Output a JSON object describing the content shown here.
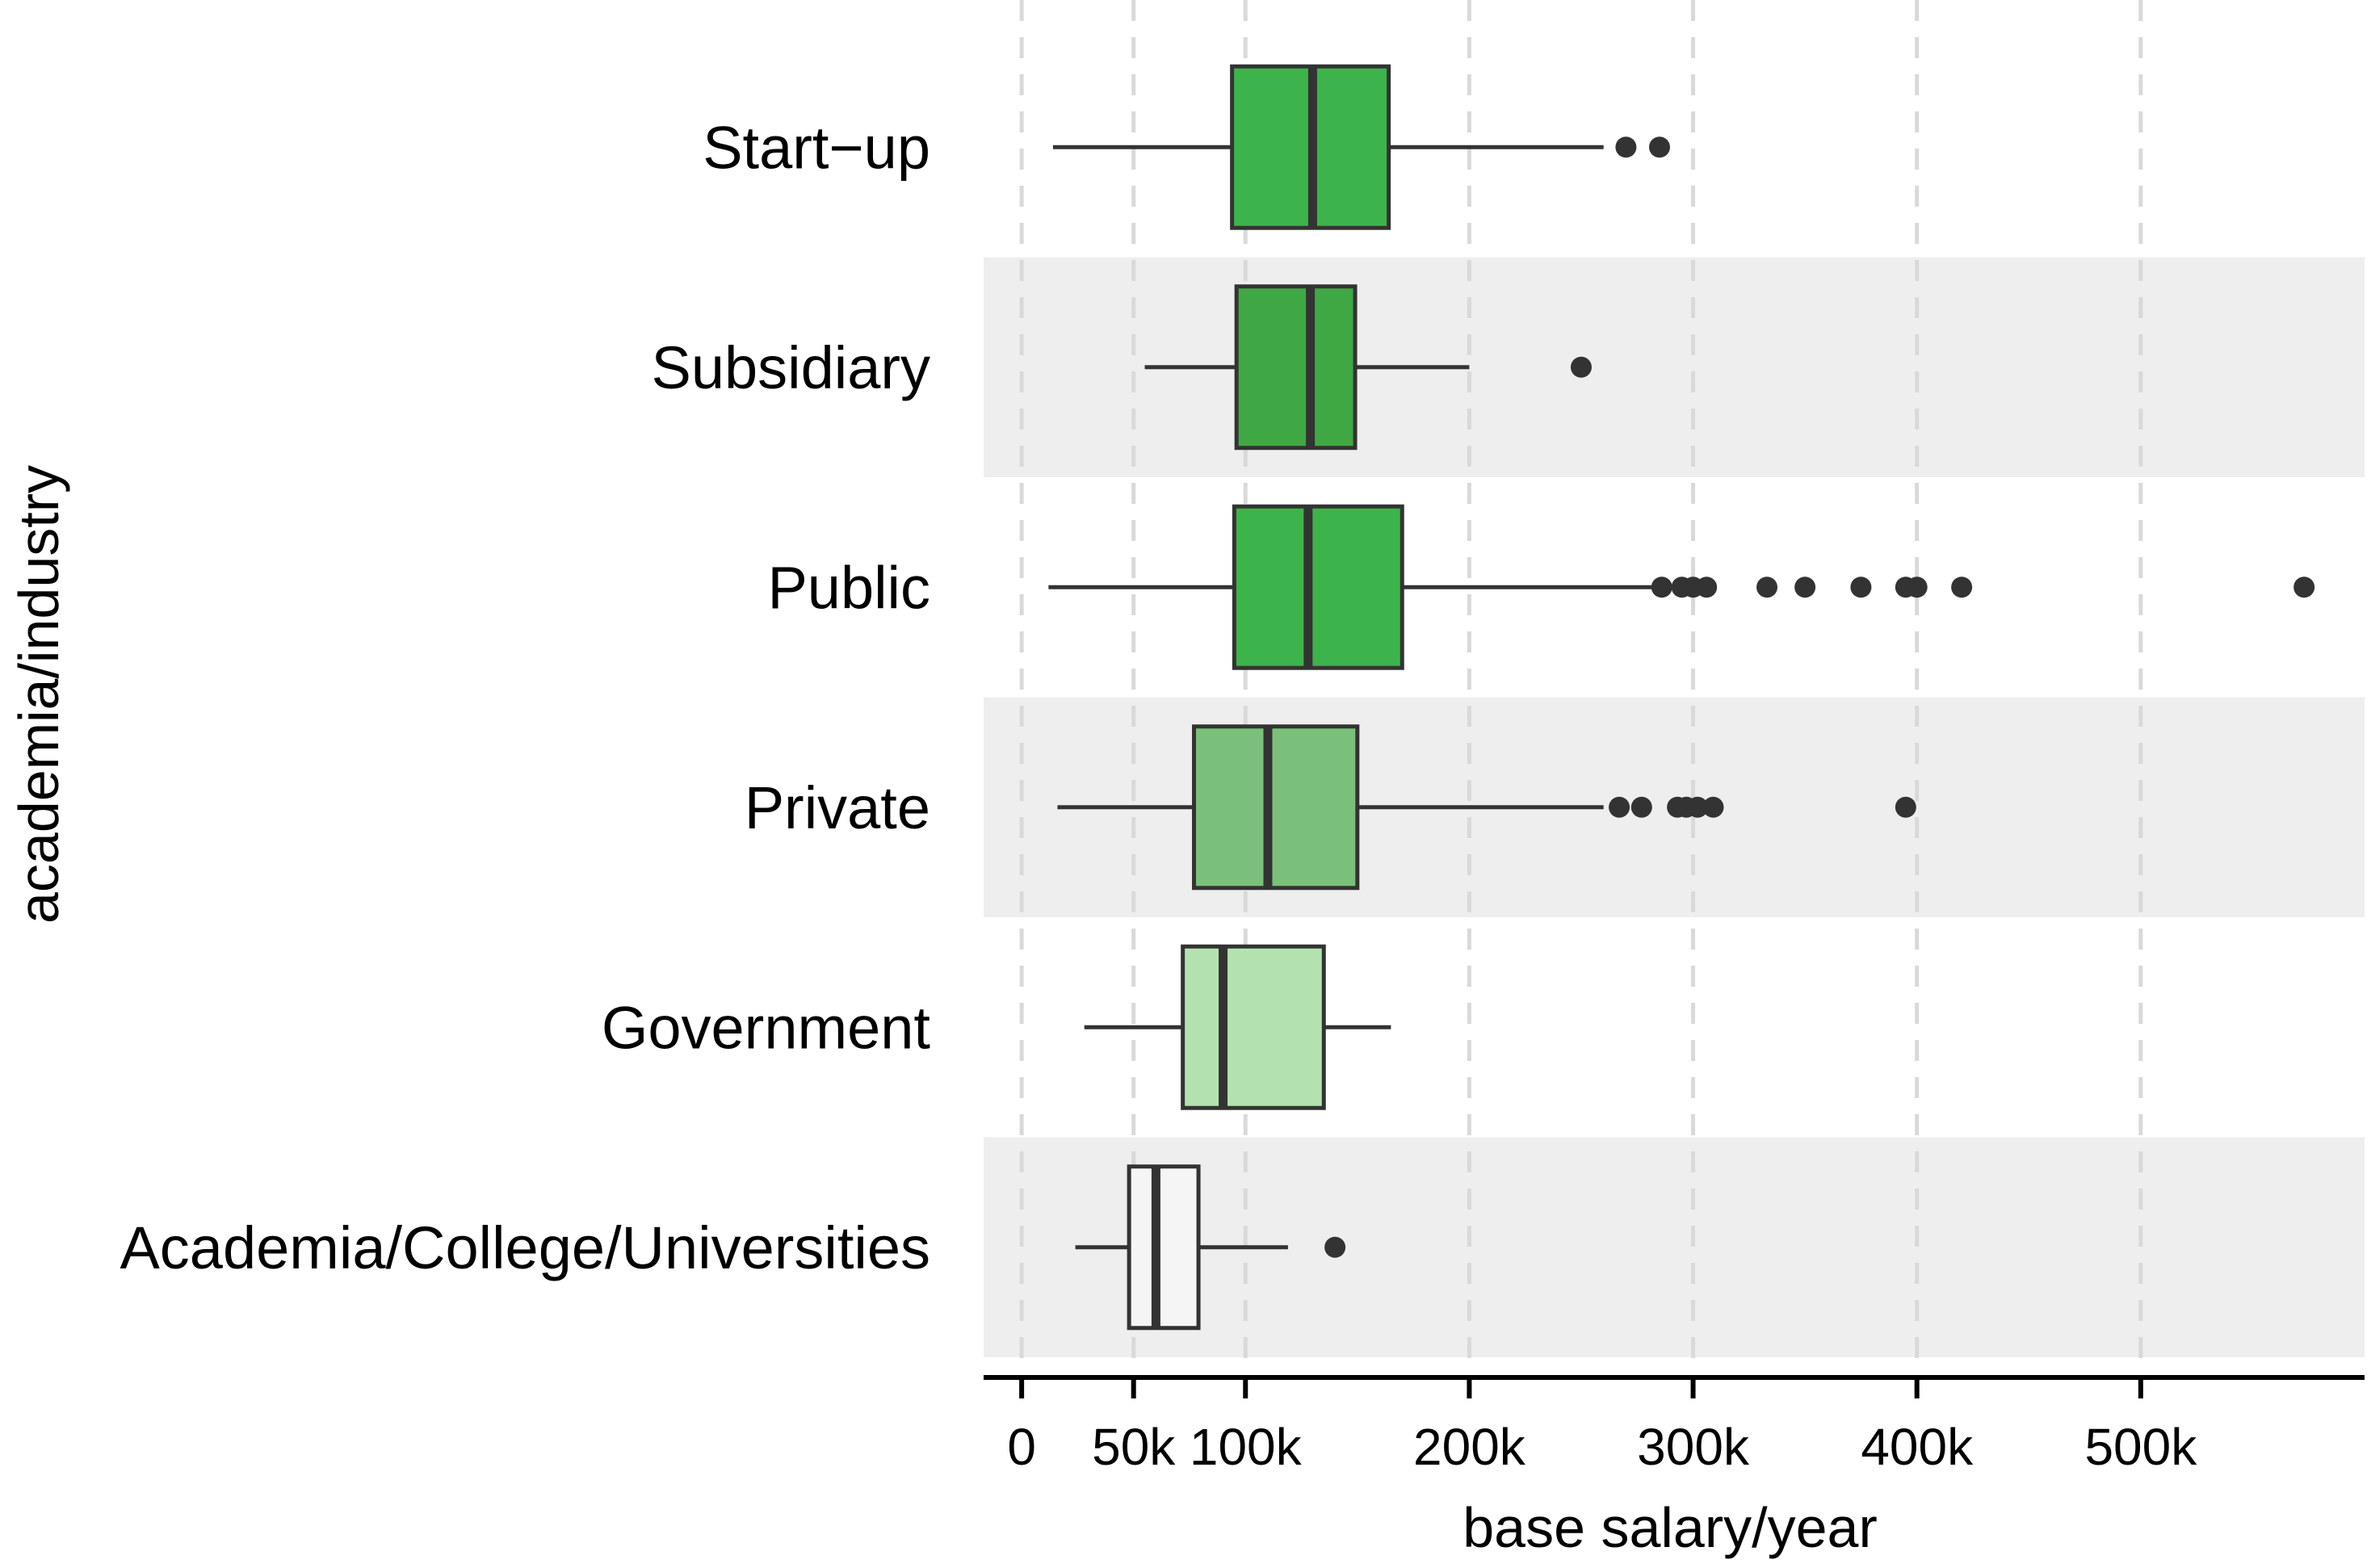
{
  "chart_data": {
    "type": "boxplot",
    "orientation": "horizontal",
    "xlabel": "base salary/year",
    "ylabel": "academia/industry",
    "xlim": [
      -17000,
      600000
    ],
    "xticks": [
      {
        "value": 0,
        "label": "0"
      },
      {
        "value": 50000,
        "label": "50k"
      },
      {
        "value": 100000,
        "label": "100k"
      },
      {
        "value": 200000,
        "label": "200k"
      },
      {
        "value": 300000,
        "label": "300k"
      },
      {
        "value": 400000,
        "label": "400k"
      },
      {
        "value": 500000,
        "label": "500k"
      }
    ],
    "grid": "vertical-dashed",
    "categories": [
      {
        "label": "Start−up",
        "color": "#3cb44b",
        "whisker_low": 14000,
        "q1": 94000,
        "median": 130000,
        "q3": 164000,
        "whisker_high": 260000,
        "outliers": [
          270000,
          285000
        ]
      },
      {
        "label": "Subsidiary",
        "color": "#3fa844",
        "whisker_low": 55000,
        "q1": 96000,
        "median": 129000,
        "q3": 149000,
        "whisker_high": 200000,
        "outliers": [
          250000
        ]
      },
      {
        "label": "Public",
        "color": "#3cb44b",
        "whisker_low": 12000,
        "q1": 95000,
        "median": 128000,
        "q3": 170000,
        "whisker_high": 285000,
        "outliers": [
          286000,
          295000,
          300000,
          306000,
          333000,
          350000,
          375000,
          395000,
          400000,
          420000,
          573000
        ]
      },
      {
        "label": "Private",
        "color": "#7ac07a",
        "whisker_low": 16000,
        "q1": 77000,
        "median": 110000,
        "q3": 150000,
        "whisker_high": 260000,
        "outliers": [
          267000,
          277000,
          293000,
          297000,
          302000,
          309000,
          395000
        ]
      },
      {
        "label": "Government",
        "color": "#b3e2b0",
        "whisker_low": 28000,
        "q1": 72000,
        "median": 90000,
        "q3": 135000,
        "whisker_high": 165000,
        "outliers": []
      },
      {
        "label": "Academia/College/Universities",
        "color": "#f5f5f5",
        "whisker_low": 24000,
        "q1": 48000,
        "median": 60000,
        "q3": 79000,
        "whisker_high": 119000,
        "outliers": [
          140000
        ]
      }
    ]
  }
}
